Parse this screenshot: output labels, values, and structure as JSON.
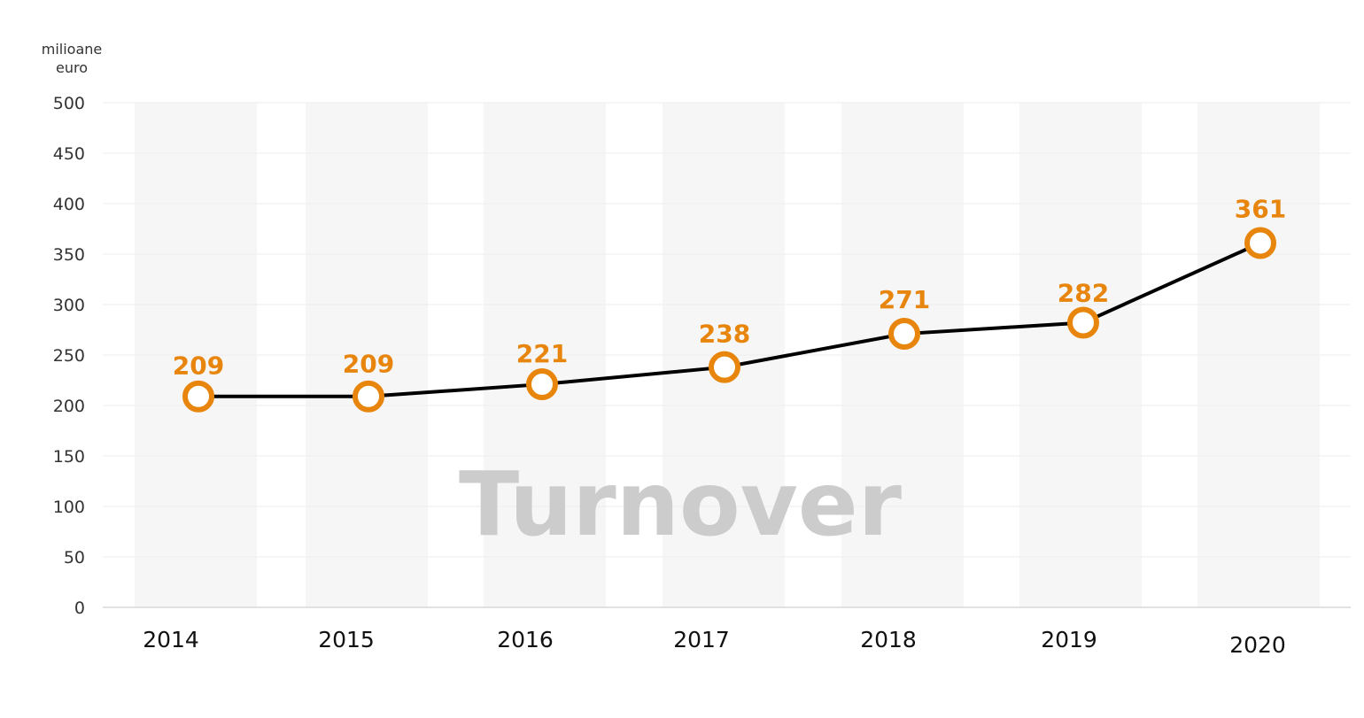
{
  "chart_data": {
    "type": "line",
    "title": "Turnover",
    "ylabel": "milioane euro",
    "ylabel_lines": [
      "milioane",
      "euro"
    ],
    "categories": [
      "2014",
      "2015",
      "2016",
      "2017",
      "2018",
      "2019",
      "2020"
    ],
    "series": [
      {
        "values": [
          209,
          209,
          221,
          238,
          271,
          282,
          361
        ]
      }
    ],
    "data_labels": [
      "209",
      "209",
      "221",
      "238",
      "271",
      "282",
      "361"
    ],
    "ylim": [
      0,
      500
    ],
    "yticks": [
      "0",
      "50",
      "100",
      "150",
      "200",
      "250",
      "300",
      "350",
      "400",
      "450",
      "500"
    ],
    "grid": true,
    "legend": "none",
    "colors": {
      "line": "#000000",
      "marker_stroke": "#e8850c",
      "marker_fill": "#ffffff",
      "data_label": "#e8850c",
      "band": "#f6f6f6",
      "gridline": "#eeeeee",
      "watermark": "#cccccc"
    }
  }
}
